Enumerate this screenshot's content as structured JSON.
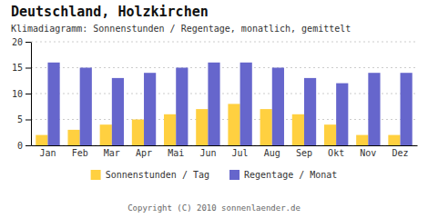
{
  "chart_data": {
    "type": "bar",
    "title": "Deutschland, Holzkirchen",
    "subtitle": "Klimadiagramm: Sonnenstunden / Regentage, monatlich, gemittelt",
    "categories": [
      "Jan",
      "Feb",
      "Mar",
      "Apr",
      "Mai",
      "Jun",
      "Jul",
      "Aug",
      "Sep",
      "Okt",
      "Nov",
      "Dez"
    ],
    "series": [
      {
        "name": "Sonnenstunden / Tag",
        "color": "#FFD040",
        "values": [
          2,
          3,
          4,
          5,
          6,
          7,
          8,
          7,
          6,
          4,
          2,
          2
        ]
      },
      {
        "name": "Regentage / Monat",
        "color": "#6666CC",
        "values": [
          16,
          15,
          13,
          14,
          15,
          16,
          16,
          15,
          13,
          12,
          14,
          14
        ]
      }
    ],
    "ylim": [
      0,
      20
    ],
    "yticks": [
      0,
      5,
      10,
      15,
      20
    ],
    "grid": true,
    "legend": "bottom",
    "annotations": [
      "Copyright (C) 2010 sonnenlaender.de"
    ]
  }
}
